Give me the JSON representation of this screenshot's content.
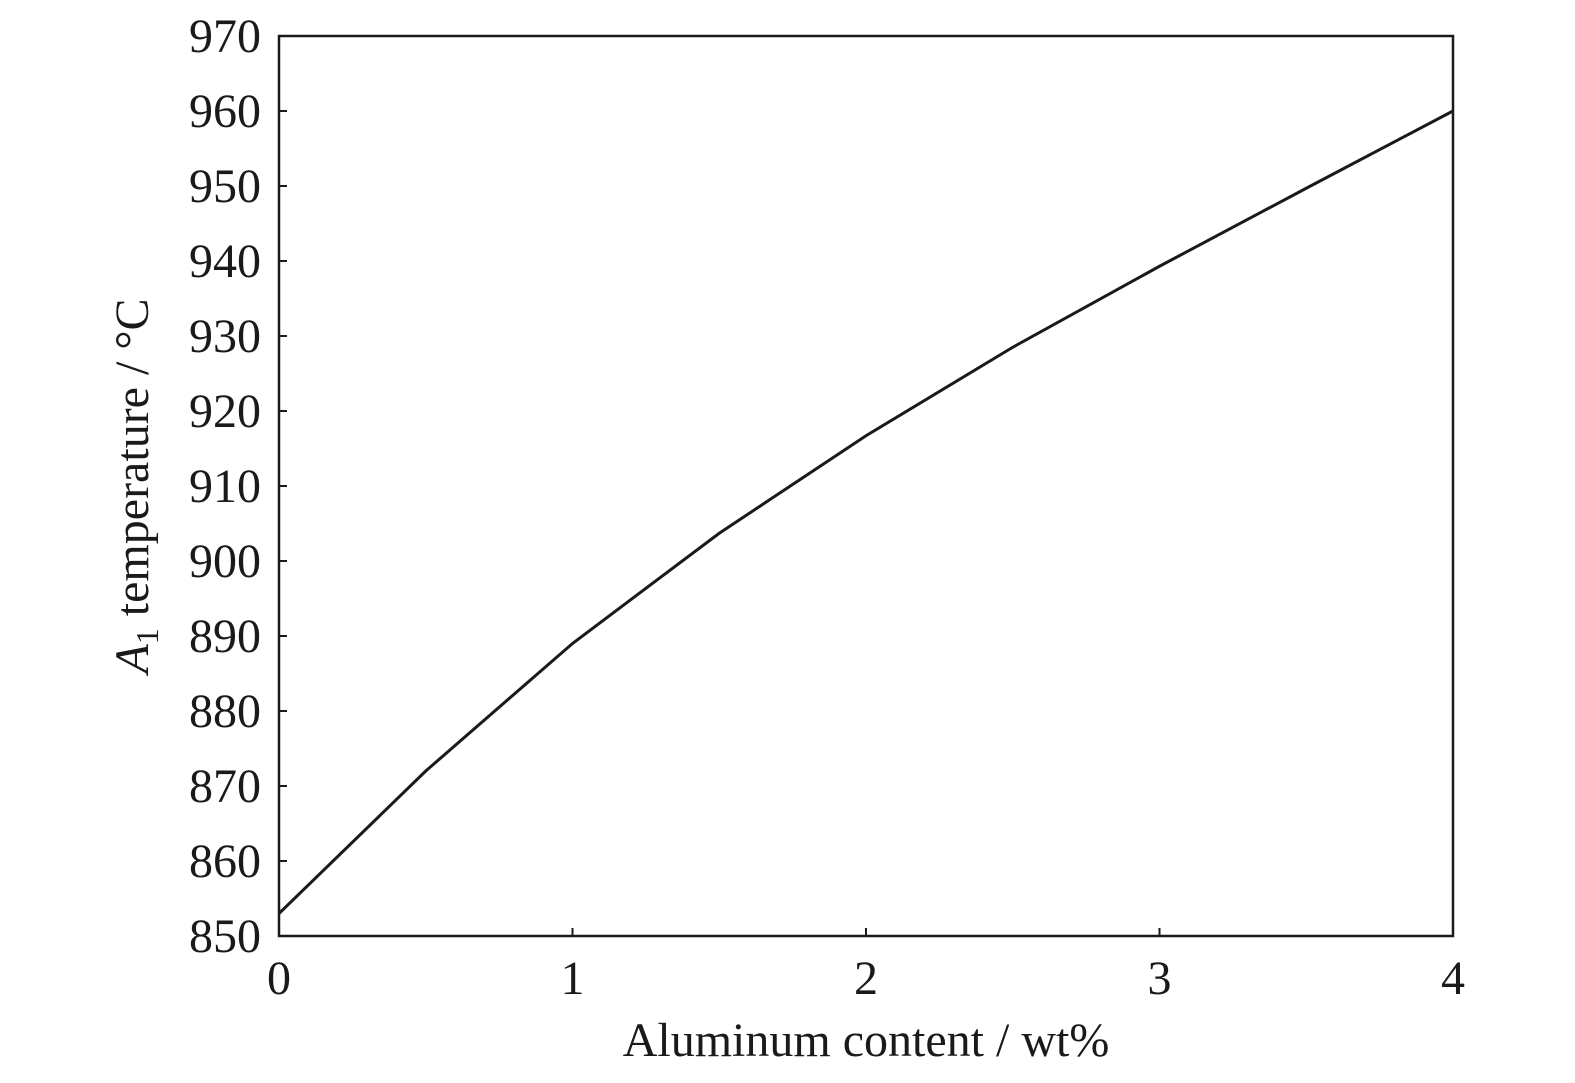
{
  "chart_data": {
    "type": "line",
    "xlabel": "Aluminum content / wt%",
    "ylabel_parts": [
      "A",
      "1",
      " temperature / °C"
    ],
    "x": [
      0,
      0.5,
      1,
      1.5,
      2,
      2.5,
      3,
      3.5,
      4
    ],
    "series": [
      {
        "color": "#1a1a1a",
        "values": [
          853,
          872,
          889,
          903.7,
          916.7,
          928.5,
          939.3,
          949.7,
          960
        ]
      }
    ],
    "xlim": [
      0,
      4
    ],
    "xticks": [
      0,
      1,
      2,
      3,
      4
    ],
    "ylim": [
      850,
      970
    ],
    "yticks": [
      850,
      860,
      870,
      880,
      890,
      900,
      910,
      920,
      930,
      940,
      950,
      960,
      970
    ]
  }
}
